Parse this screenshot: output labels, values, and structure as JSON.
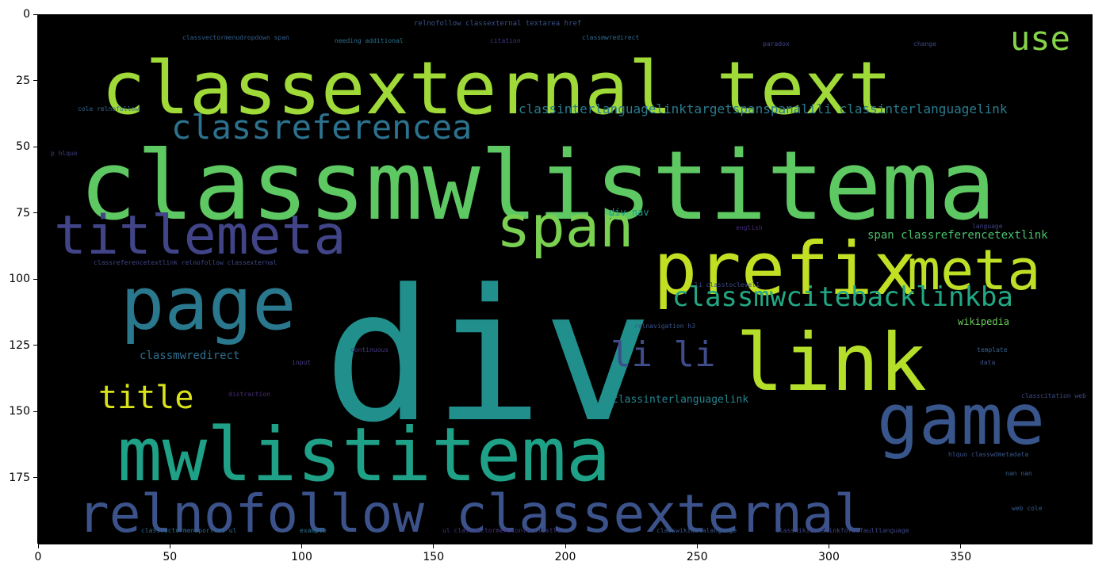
{
  "figure": {
    "background": "#ffffff",
    "plot_background": "#000000",
    "tick_color": "#000000"
  },
  "axes": {
    "x_ticks": [
      "0",
      "50",
      "100",
      "150",
      "200",
      "250",
      "300",
      "350"
    ],
    "y_ticks": [
      "0",
      "25",
      "50",
      "75",
      "100",
      "125",
      "150",
      "175"
    ],
    "x_range": [
      0,
      400
    ],
    "y_range": [
      0,
      200
    ]
  },
  "wordcloud": {
    "colormap": "viridis",
    "words": [
      {
        "text": "div",
        "color": "#21908d"
      },
      {
        "text": "classmwlistitema",
        "color": "#5ec962"
      },
      {
        "text": "classexternal text",
        "color": "#a0da39"
      },
      {
        "text": "mwlistitema",
        "color": "#1fa187"
      },
      {
        "text": "relnofollow classexternal",
        "color": "#3b528b"
      },
      {
        "text": "prefix",
        "color": "#c2df23"
      },
      {
        "text": "page",
        "color": "#2a788e"
      },
      {
        "text": "link",
        "color": "#b5de2b"
      },
      {
        "text": "game",
        "color": "#39568c"
      },
      {
        "text": "titlemeta",
        "color": "#414487"
      },
      {
        "text": "span",
        "color": "#7ad151"
      },
      {
        "text": "meta",
        "color": "#bddf26"
      },
      {
        "text": "classreferencea",
        "color": "#2c728e"
      },
      {
        "text": "classmwcitebacklinkba",
        "color": "#22a884"
      },
      {
        "text": "title",
        "color": "#d8e219"
      },
      {
        "text": "use",
        "color": "#86d549"
      },
      {
        "text": "li li",
        "color": "#3e4c8a"
      },
      {
        "text": "classinterlanguagelinktargetspanspanalili classinterlanguagelink",
        "color": "#287c8e"
      },
      {
        "text": "span classreferencetextlink",
        "color": "#4ac16d"
      },
      {
        "text": "classmwredirect",
        "color": "#2e6e8e"
      },
      {
        "text": "classinterlanguagelink",
        "color": "#25848e"
      },
      {
        "text": "div nav",
        "color": "#1f9a8a"
      },
      {
        "text": "wikipedia",
        "color": "#6ccd5a"
      },
      {
        "text": "relnofollow classexternal textarea href",
        "color": "#3b528b"
      },
      {
        "text": "classvectormenudropdown span",
        "color": "#355f8d"
      },
      {
        "text": "needing additional",
        "color": "#2d708e"
      },
      {
        "text": "citation",
        "color": "#46337e"
      },
      {
        "text": "classmwredirect",
        "color": "#2f6c8e"
      },
      {
        "text": "paradox",
        "color": "#404588"
      },
      {
        "text": "change",
        "color": "#3e4989"
      },
      {
        "text": "cole relnofollow",
        "color": "#31688e"
      },
      {
        "text": "p hlquo",
        "color": "#433e85"
      },
      {
        "text": "classreferencetextlink relnofollow classexternal",
        "color": "#3f4889"
      },
      {
        "text": "english",
        "color": "#482878"
      },
      {
        "text": "relnavigation h3",
        "color": "#3a548c"
      },
      {
        "text": "template",
        "color": "#34618d"
      },
      {
        "text": "classvectormenuportlet ul",
        "color": "#306a8e"
      },
      {
        "text": "example",
        "color": "#2b748e"
      },
      {
        "text": "ul classvectormenucontentlistli",
        "color": "#453781"
      },
      {
        "text": "classwikidatalanguage",
        "color": "#38598c"
      },
      {
        "text": "classwikidatalinkfordefaultlanguage",
        "color": "#3f4788"
      },
      {
        "text": "distraction",
        "color": "#472d7b"
      },
      {
        "text": "hlquo classwdmetadata",
        "color": "#39558c"
      },
      {
        "text": "language",
        "color": "#404387"
      },
      {
        "text": "li classtoclevel1",
        "color": "#3d4d8a"
      },
      {
        "text": "classcitation web",
        "color": "#3e4a89"
      },
      {
        "text": "input",
        "color": "#433d84"
      },
      {
        "text": "data",
        "color": "#3c4f8a"
      },
      {
        "text": "web cole",
        "color": "#365d8d"
      },
      {
        "text": "nan nan",
        "color": "#355e8d"
      },
      {
        "text": "continuous",
        "color": "#443983"
      }
    ]
  }
}
